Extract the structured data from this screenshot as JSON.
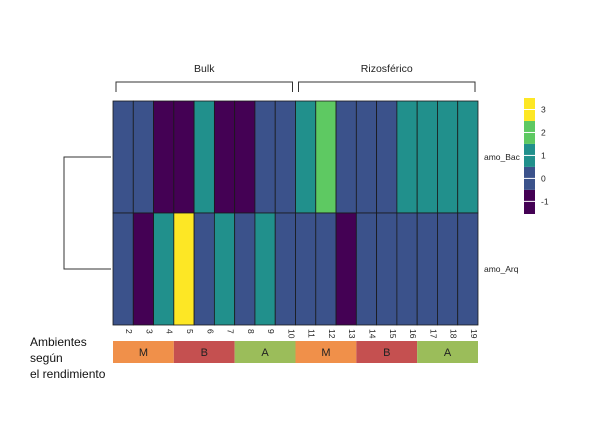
{
  "chart_data": {
    "type": "heatmap",
    "columns": [
      "2",
      "3",
      "4",
      "5",
      "6",
      "7",
      "8",
      "9",
      "10",
      "11",
      "12",
      "13",
      "14",
      "15",
      "16",
      "17",
      "18",
      "19"
    ],
    "rows": [
      "amo_Bac",
      "amo_Arq"
    ],
    "values": [
      [
        0,
        0,
        -1,
        -1,
        1,
        -1,
        -1,
        0,
        0,
        1,
        2,
        0,
        0,
        0,
        1,
        1,
        1,
        1
      ],
      [
        0,
        -1,
        1,
        3,
        0,
        1,
        0,
        1,
        0,
        0,
        0,
        -1,
        0,
        0,
        0,
        0,
        0,
        0
      ]
    ],
    "column_groups": [
      {
        "label": "Bulk",
        "start": 0,
        "end": 8
      },
      {
        "label": "Rizosférico",
        "start": 9,
        "end": 17
      }
    ],
    "annotation": {
      "label_line1": "Ambientes según",
      "label_line2": "el rendimiento",
      "segments": [
        {
          "label": "M",
          "start": 0,
          "end": 2,
          "color": "#f0904a"
        },
        {
          "label": "B",
          "start": 3,
          "end": 5,
          "color": "#c55050"
        },
        {
          "label": "A",
          "start": 6,
          "end": 8,
          "color": "#9bbd5a"
        },
        {
          "label": "M",
          "start": 9,
          "end": 11,
          "color": "#f0904a"
        },
        {
          "label": "B",
          "start": 12,
          "end": 14,
          "color": "#c55050"
        },
        {
          "label": "A",
          "start": 15,
          "end": 17,
          "color": "#9bbd5a"
        }
      ]
    },
    "legend": {
      "ticks": [
        "3",
        "2",
        "1",
        "0",
        "-1"
      ],
      "tick_values": [
        3,
        2,
        1,
        0,
        -1
      ],
      "placement": "right"
    },
    "color_scale": {
      "-1": "#440154",
      "0": "#3b528b",
      "1": "#21908c",
      "2": "#5ec962",
      "3": "#fde725"
    },
    "dendrogram": "rows"
  }
}
